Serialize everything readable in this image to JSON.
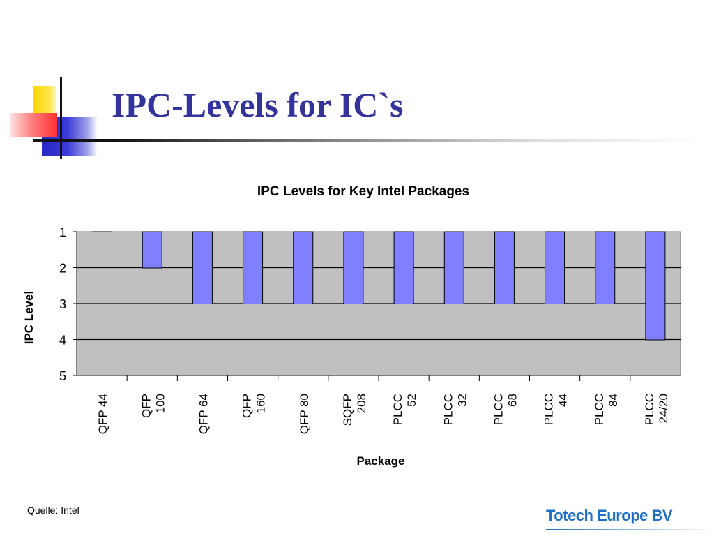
{
  "slide": {
    "title": "IPC-Levels for IC`s",
    "source_note": "Quelle: Intel",
    "company": "Totech Europe BV"
  },
  "colors": {
    "title": "#333399",
    "bar_fill": "#8080ff",
    "plot_background": "#c0c0c0",
    "company": "#1e6fc4"
  },
  "chart_data": {
    "type": "bar",
    "title": "IPC Levels for Key Intel Packages",
    "xlabel": "Package",
    "ylabel": "IPC Level",
    "categories": [
      [
        "QFP 44"
      ],
      [
        "QFP",
        "100"
      ],
      [
        "QFP 64"
      ],
      [
        "QFP",
        "160"
      ],
      [
        "QFP 80"
      ],
      [
        "SQFP",
        "208"
      ],
      [
        "PLCC",
        "52"
      ],
      [
        "PLCC",
        "32"
      ],
      [
        "PLCC",
        "68"
      ],
      [
        "PLCC",
        "44"
      ],
      [
        "PLCC",
        "84"
      ],
      [
        "PLCC",
        "24/20"
      ]
    ],
    "values": [
      1,
      2,
      3,
      3,
      3,
      3,
      3,
      3,
      3,
      3,
      3,
      4
    ],
    "yticks": [
      1,
      2,
      3,
      4,
      5
    ],
    "ylim": [
      1,
      5
    ],
    "y_inverted": true,
    "grid": true,
    "legend": "none"
  }
}
